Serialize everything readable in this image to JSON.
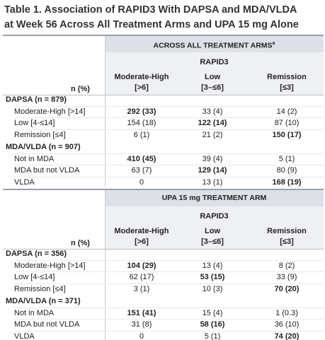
{
  "title_lines": [
    "Table 1. Association of RAPID3 With DAPSA and MDA/VLDA",
    "at Week 56 Across All Treatment Arms and UPA 15 mg Alone"
  ],
  "panels": [
    {
      "heading": "ACROSS ALL TREATMENT ARMS",
      "heading_note": "a",
      "subheading": "RAPID3",
      "row_header": "n (%)",
      "columns": [
        [
          "Moderate-High",
          "[>6]"
        ],
        [
          "Low",
          "[3–≤6]"
        ],
        [
          "Remission",
          "[≤3]"
        ]
      ],
      "groups": [
        {
          "label": "DAPSA (n = 879)",
          "rows": [
            {
              "label": "Moderate-High [>14]",
              "cells": [
                "292 (33)",
                "33 (4)",
                "14 (2)"
              ],
              "bold": 0
            },
            {
              "label": "Low [4-≤14]",
              "cells": [
                "154 (18)",
                "122 (14)",
                "87 (10)"
              ],
              "bold": 1
            },
            {
              "label": "Remission [≤4]",
              "cells": [
                "6 (1)",
                "21 (2)",
                "150 (17)"
              ],
              "bold": 2
            }
          ]
        },
        {
          "label": "MDA/VLDA (n = 907)",
          "rows": [
            {
              "label": "Not in MDA",
              "cells": [
                "410 (45)",
                "39 (4)",
                "5 (1)"
              ],
              "bold": 0
            },
            {
              "label": "MDA but not VLDA",
              "cells": [
                "63 (7)",
                "129 (14)",
                "80 (9)"
              ],
              "bold": 1
            },
            {
              "label": "VLDA",
              "cells": [
                "0",
                "13 (1)",
                "168 (19)"
              ],
              "bold": 2
            }
          ]
        }
      ]
    },
    {
      "heading": "UPA 15 mg TREATMENT ARM",
      "subheading": "RAPID3",
      "row_header": "n (%)",
      "columns": [
        [
          "Moderate-High",
          "[>6]"
        ],
        [
          "Low",
          "[3–≤6]"
        ],
        [
          "Remission",
          "[≤3]"
        ]
      ],
      "groups": [
        {
          "label": "DAPSA (n = 356)",
          "rows": [
            {
              "label": "Moderate-High [>14]",
              "cells": [
                "104 (29)",
                "13 (4)",
                "8 (2)"
              ],
              "bold": 0
            },
            {
              "label": "Low [4-≤14]",
              "cells": [
                "62 (17)",
                "53 (15)",
                "33 (9)"
              ],
              "bold": 1
            },
            {
              "label": "Remission [≤4]",
              "cells": [
                "3 (1)",
                "10 (3)",
                "70 (20)"
              ],
              "bold": 2
            }
          ]
        },
        {
          "label": "MDA/VLDA (n = 371)",
          "rows": [
            {
              "label": "Not in MDA",
              "cells": [
                "151 (41)",
                "15 (4)",
                "1 (0.3)"
              ],
              "bold": 0
            },
            {
              "label": "MDA but not VLDA",
              "cells": [
                "31 (8)",
                "58 (16)",
                "36 (10)"
              ],
              "bold": 1
            },
            {
              "label": "VLDA",
              "cells": [
                "0",
                "5 (1)",
                "74 (20)"
              ],
              "bold": 2
            }
          ]
        }
      ]
    }
  ]
}
